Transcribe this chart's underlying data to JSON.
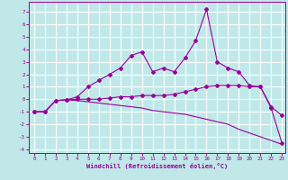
{
  "xlabel": "Windchill (Refroidissement éolien,°C)",
  "bg_color": "#c0e8e8",
  "grid_color": "#ffffff",
  "line_color": "#990099",
  "xlim": [
    -0.5,
    23.3
  ],
  "ylim": [
    -4.3,
    7.8
  ],
  "xticks": [
    0,
    1,
    2,
    3,
    4,
    5,
    6,
    7,
    8,
    9,
    10,
    11,
    12,
    13,
    14,
    15,
    16,
    17,
    18,
    19,
    20,
    21,
    22,
    23
  ],
  "yticks": [
    -4,
    -3,
    -2,
    -1,
    0,
    1,
    2,
    3,
    4,
    5,
    6,
    7
  ],
  "line1_x": [
    0,
    1,
    2,
    3,
    4,
    5,
    6,
    7,
    8,
    9,
    10,
    11,
    12,
    13,
    14,
    15,
    16,
    17,
    18,
    19,
    20,
    21,
    22,
    23
  ],
  "line1_y": [
    -1.0,
    -1.0,
    -0.1,
    -0.05,
    0.2,
    1.0,
    1.5,
    2.0,
    2.5,
    3.5,
    3.8,
    2.2,
    2.5,
    2.2,
    3.3,
    4.7,
    7.2,
    3.0,
    2.5,
    2.2,
    1.1,
    1.0,
    -0.6,
    -1.3
  ],
  "line2_x": [
    0,
    1,
    2,
    3,
    4,
    5,
    6,
    7,
    8,
    9,
    10,
    11,
    12,
    13,
    14,
    15,
    16,
    17,
    18,
    19,
    20,
    21,
    22,
    23
  ],
  "line2_y": [
    -1.0,
    -1.0,
    -0.1,
    -0.05,
    0.0,
    0.0,
    0.0,
    0.1,
    0.2,
    0.2,
    0.3,
    0.3,
    0.3,
    0.4,
    0.6,
    0.8,
    1.0,
    1.1,
    1.1,
    1.1,
    1.0,
    1.0,
    -0.7,
    -3.5
  ],
  "line3_x": [
    0,
    1,
    2,
    3,
    4,
    5,
    6,
    7,
    8,
    9,
    10,
    11,
    12,
    13,
    14,
    15,
    16,
    17,
    18,
    19,
    20,
    21,
    22,
    23
  ],
  "line3_y": [
    -1.0,
    -1.0,
    -0.1,
    -0.05,
    -0.1,
    -0.2,
    -0.3,
    -0.4,
    -0.5,
    -0.6,
    -0.7,
    -0.9,
    -1.0,
    -1.1,
    -1.2,
    -1.4,
    -1.6,
    -1.8,
    -2.0,
    -2.4,
    -2.7,
    -3.0,
    -3.3,
    -3.6
  ]
}
